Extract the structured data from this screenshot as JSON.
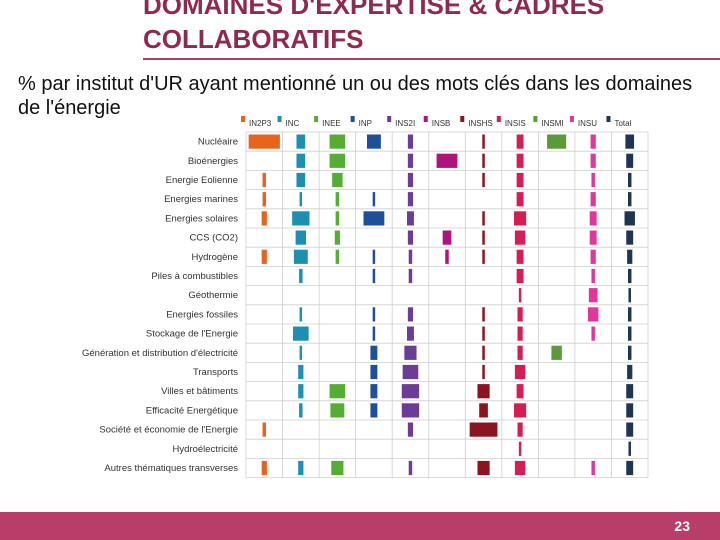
{
  "slide": {
    "title": "DOMAINES D'EXPERTISE & CADRES COLLABORATIFS",
    "subtitle": "% par institut d'UR ayant mentionné un ou des mots clés dans les domaines de l'énergie",
    "page_number": "23"
  },
  "colors": {
    "title": "#8f2a4f",
    "footer": "#b83d69",
    "grid": "#cfcfcf"
  },
  "chart_data": {
    "type": "heatmap",
    "title": "",
    "columns": [
      "IN2P3",
      "INC",
      "INEE",
      "INP",
      "INS2I",
      "INSB",
      "INSHS",
      "INSIS",
      "INSMI",
      "INSU",
      "Total"
    ],
    "column_colors": [
      "#e8641c",
      "#1d8fb0",
      "#55ad33",
      "#1f4f99",
      "#6c3d96",
      "#b0127e",
      "#8b1421",
      "#d31f55",
      "#5a9a3a",
      "#e0379a",
      "#1f3552"
    ],
    "rows": [
      "Nucléaire",
      "Bioénergies",
      "Energie Eolienne",
      "Energies marines",
      "Energies solaires",
      "CCS (CO2)",
      "Hydrogène",
      "Piles à combustibles",
      "Géothermie",
      "Energies fossiles",
      "Stockage de l'Energie",
      "Génération et distribution d'électricité",
      "Transports",
      "Villes et bâtiments",
      "Efficacité Energétique",
      "Société et économie de l'Energie",
      "Hydroélectricité",
      "Autres thématiques transverses"
    ],
    "values": [
      [
        90,
        25,
        45,
        40,
        15,
        0,
        5,
        20,
        55,
        15,
        25
      ],
      [
        0,
        25,
        45,
        0,
        15,
        60,
        5,
        20,
        0,
        15,
        20
      ],
      [
        10,
        25,
        30,
        0,
        15,
        0,
        5,
        20,
        0,
        10,
        10
      ],
      [
        10,
        5,
        10,
        5,
        15,
        0,
        0,
        20,
        0,
        15,
        10
      ],
      [
        15,
        50,
        10,
        60,
        20,
        0,
        5,
        35,
        0,
        20,
        30
      ],
      [
        0,
        30,
        15,
        0,
        15,
        25,
        5,
        30,
        0,
        20,
        20
      ],
      [
        15,
        40,
        10,
        5,
        10,
        10,
        5,
        20,
        0,
        15,
        15
      ],
      [
        0,
        10,
        0,
        5,
        10,
        0,
        0,
        20,
        0,
        10,
        10
      ],
      [
        0,
        0,
        0,
        0,
        0,
        0,
        0,
        5,
        0,
        25,
        5
      ],
      [
        0,
        5,
        0,
        5,
        15,
        0,
        5,
        15,
        0,
        30,
        10
      ],
      [
        0,
        45,
        0,
        5,
        20,
        0,
        5,
        15,
        0,
        10,
        10
      ],
      [
        0,
        5,
        0,
        20,
        35,
        0,
        5,
        15,
        30,
        0,
        10
      ],
      [
        0,
        15,
        0,
        20,
        45,
        0,
        5,
        30,
        0,
        0,
        15
      ],
      [
        0,
        15,
        45,
        20,
        50,
        0,
        35,
        20,
        0,
        0,
        20
      ],
      [
        0,
        10,
        40,
        20,
        50,
        0,
        25,
        35,
        0,
        0,
        20
      ],
      [
        10,
        0,
        0,
        0,
        15,
        0,
        80,
        15,
        0,
        0,
        20
      ],
      [
        0,
        0,
        0,
        0,
        0,
        0,
        0,
        5,
        0,
        0,
        5
      ],
      [
        15,
        15,
        35,
        0,
        10,
        0,
        35,
        30,
        0,
        10,
        20
      ]
    ]
  }
}
